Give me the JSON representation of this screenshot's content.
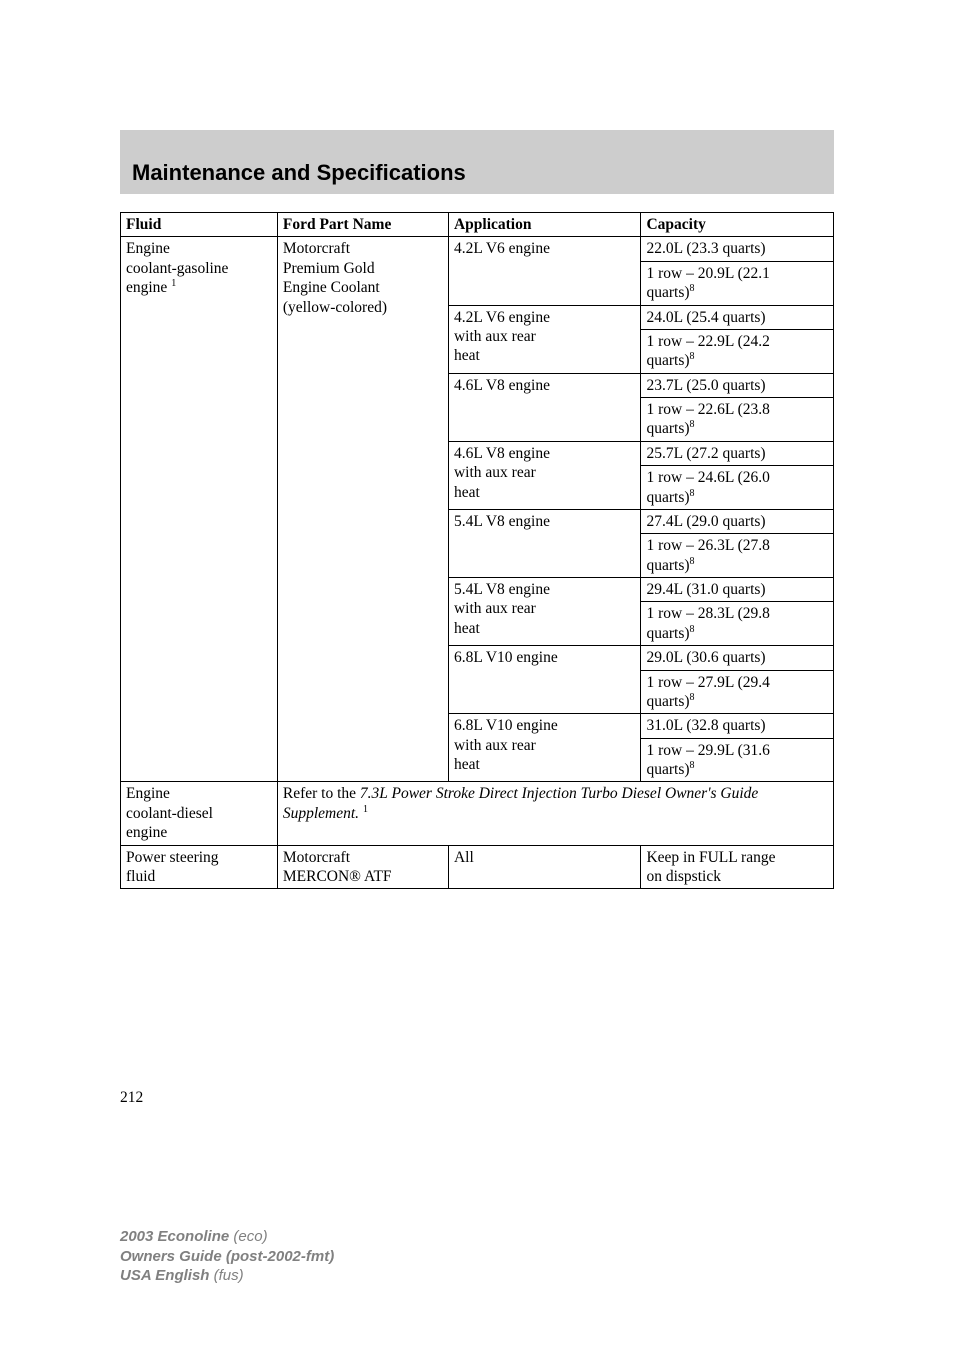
{
  "page": {
    "title": "Maintenance and Specifications",
    "number": "212",
    "background_color": "#ffffff",
    "text_color": "#000000",
    "band_color": "#cdcdcd"
  },
  "table": {
    "border_color": "#000000",
    "headers": {
      "c1": "Fluid",
      "c2": "Ford Part Name",
      "c3": "Application",
      "c4": "Capacity"
    },
    "coolant_gas": {
      "fluid_line1": "Engine",
      "fluid_line2": "coolant-gasoline",
      "fluid_line3": "engine",
      "fluid_sup": "1",
      "part_line1": "Motorcraft",
      "part_line2": "Premium Gold",
      "part_line3": "Engine Coolant",
      "part_line4": "(yellow-colored)",
      "apps": {
        "a1": "4.2L V6 engine",
        "a2_l1": "4.2L V6 engine",
        "a2_l2": "with aux rear",
        "a2_l3": "heat",
        "a3": "4.6L V8 engine",
        "a4_l1": "4.6L V8 engine",
        "a4_l2": "with aux rear",
        "a4_l3": "heat",
        "a5": "5.4L V8 engine",
        "a6_l1": "5.4L V8 engine",
        "a6_l2": "with aux rear",
        "a6_l3": "heat",
        "a7": "6.8L V10 engine",
        "a8_l1": "6.8L V10 engine",
        "a8_l2": "with aux rear",
        "a8_l3": "heat"
      },
      "caps": {
        "a1_c1": "22.0L (23.3 quarts)",
        "a1_c2a": "1 row – 20.9L (22.1",
        "a1_c2b": "quarts)",
        "a1_sup": "8",
        "a2_c1": "24.0L (25.4 quarts)",
        "a2_c2a": "1 row – 22.9L (24.2",
        "a2_c2b": "quarts)",
        "a2_sup": "8",
        "a3_c1": "23.7L (25.0 quarts)",
        "a3_c2a": "1 row – 22.6L (23.8",
        "a3_c2b": "quarts)",
        "a3_sup": "8",
        "a4_c1": "25.7L (27.2 quarts)",
        "a4_c2a": "1 row – 24.6L (26.0",
        "a4_c2b": "quarts)",
        "a4_sup": "8",
        "a5_c1": "27.4L (29.0 quarts)",
        "a5_c2a": "1 row – 26.3L (27.8",
        "a5_c2b": "quarts)",
        "a5_sup": "8",
        "a6_c1": "29.4L (31.0 quarts)",
        "a6_c2a": "1 row – 28.3L (29.8",
        "a6_c2b": "quarts)",
        "a6_sup": "8",
        "a7_c1": "29.0L (30.6 quarts)",
        "a7_c2a": "1 row – 27.9L (29.4",
        "a7_c2b": "quarts)",
        "a7_sup": "8",
        "a8_c1": "31.0L (32.8 quarts)",
        "a8_c2a": "1 row – 29.9L (31.6",
        "a8_c2b": "quarts)",
        "a8_sup": "8"
      }
    },
    "coolant_diesel": {
      "fluid_l1": "Engine",
      "fluid_l2": "coolant-diesel",
      "fluid_l3": "engine",
      "note_pre": "Refer to the ",
      "note_ital": "7.3L Power Stroke Direct Injection Turbo Diesel Owner's Guide Supplement.",
      "note_sup": "1"
    },
    "power_steering": {
      "fluid_l1": "Power steering",
      "fluid_l2": "fluid",
      "part_l1": "Motorcraft",
      "part_l2": "MERCON® ATF",
      "app": "All",
      "cap_l1": "Keep in FULL range",
      "cap_l2": "on dispstick"
    }
  },
  "footer": {
    "l1_bold": "2003 Econoline",
    "l1_rest": " (eco)",
    "l2_bold": "Owners Guide (post-2002-fmt)",
    "l3_bold": "USA English",
    "l3_rest": " (fus)"
  }
}
